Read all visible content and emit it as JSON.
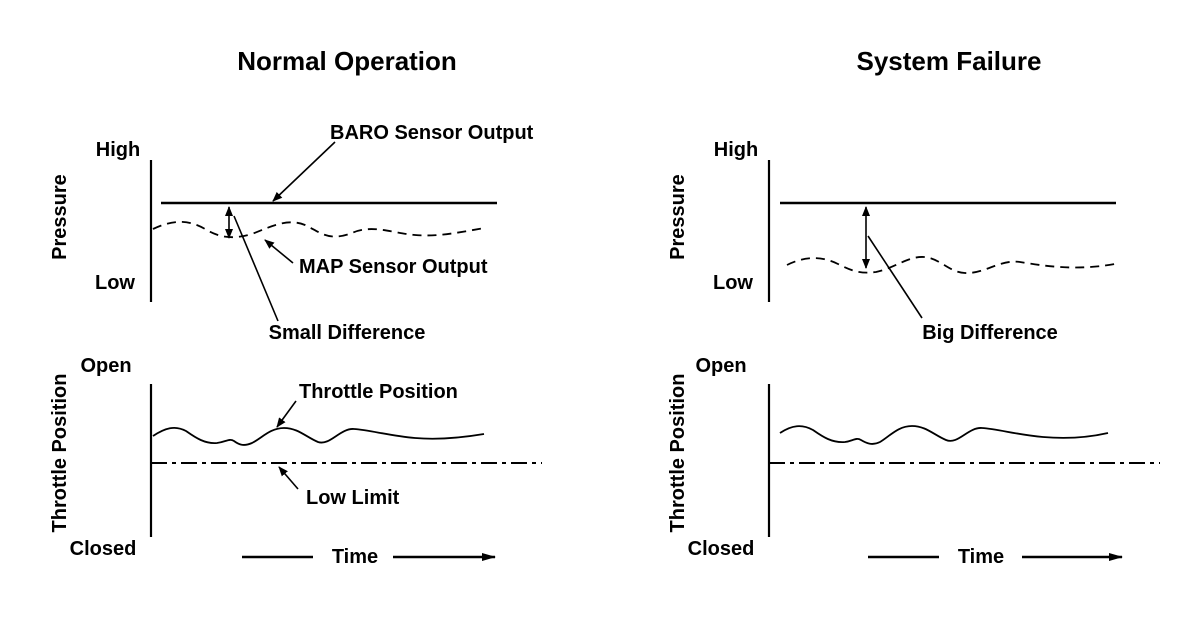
{
  "panels": [
    {
      "title": "Normal Operation",
      "pressure_axis": {
        "label": "Pressure",
        "high": "High",
        "low": "Low"
      },
      "throttle_axis": {
        "label": "Throttle Position",
        "open": "Open",
        "closed": "Closed"
      },
      "baro_label": "BARO Sensor Output",
      "map_label": "MAP Sensor Output",
      "difference_label": "Small Difference",
      "throttle_label": "Throttle Position",
      "low_limit_label": "Low Limit",
      "time_label": "Time"
    },
    {
      "title": "System Failure",
      "pressure_axis": {
        "label": "Pressure",
        "high": "High",
        "low": "Low"
      },
      "throttle_axis": {
        "label": "Throttle Position",
        "open": "Open",
        "closed": "Closed"
      },
      "difference_label": "Big Difference",
      "time_label": "Time"
    }
  ]
}
